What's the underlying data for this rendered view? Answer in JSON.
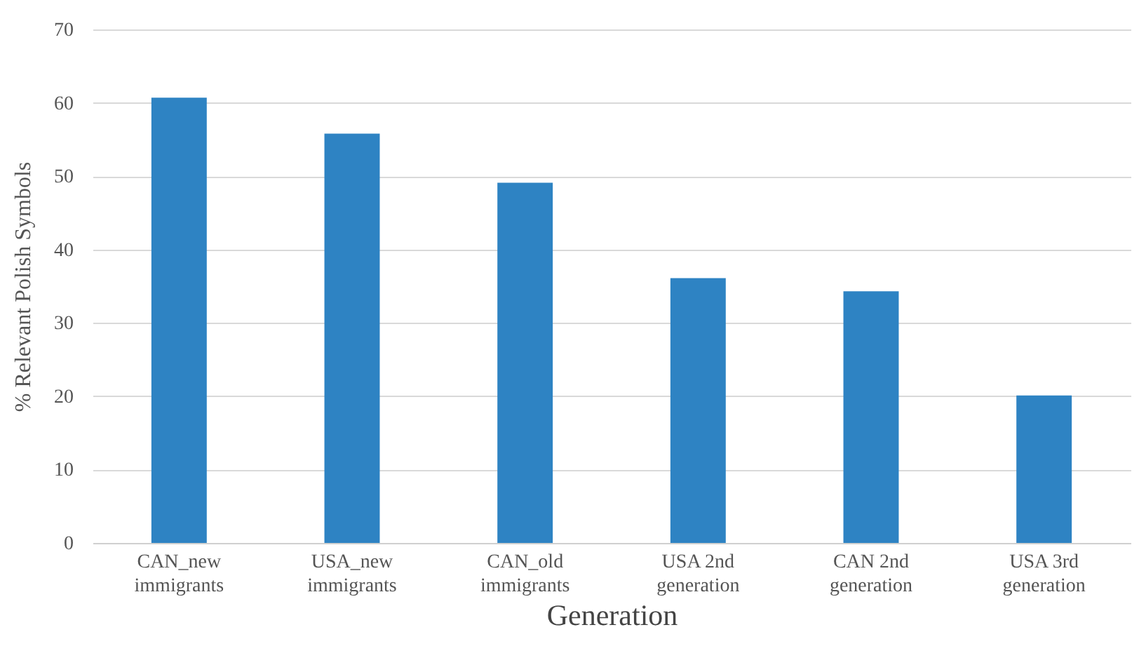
{
  "chart_data": {
    "type": "bar",
    "xlabel": "Generation",
    "ylabel": "% Relevant Polish Symbols",
    "categories": [
      "CAN_new immigrants",
      "USA_new immigrants",
      "CAN_old immigrants",
      "USA 2nd generation",
      "CAN  2nd generation",
      "USA 3rd generation"
    ],
    "values": [
      60.7,
      55.8,
      49.1,
      36.1,
      34.3,
      20.1
    ],
    "color": "#2e83c3",
    "ylim": [
      0,
      70
    ],
    "yticks": [
      0,
      10,
      20,
      30,
      40,
      50,
      60,
      70
    ],
    "grid": "y"
  }
}
